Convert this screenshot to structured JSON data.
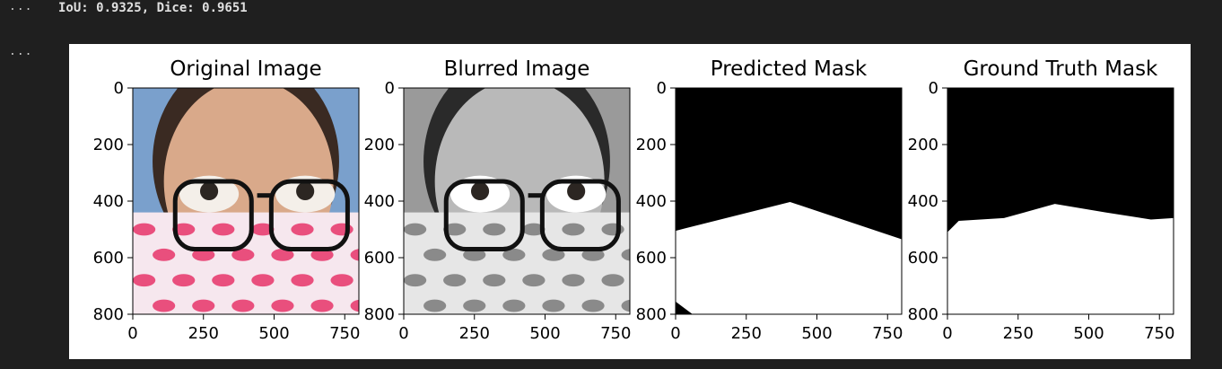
{
  "gutter": {
    "cell1": "...",
    "cell2": "..."
  },
  "output": {
    "metrics": "IoU: 0.9325, Dice: 0.9651"
  },
  "figure": {
    "panels": [
      {
        "id": "original",
        "title": "Original Image",
        "content": "color-photo-icon"
      },
      {
        "id": "blurred",
        "title": "Blurred Image",
        "content": "grayscale-photo-icon"
      },
      {
        "id": "predicted",
        "title": "Predicted Mask",
        "content": "binary-mask"
      },
      {
        "id": "ground-truth",
        "title": "Ground Truth Mask",
        "content": "binary-mask"
      }
    ],
    "x_ticks": [
      "0",
      "250",
      "500",
      "750"
    ],
    "y_ticks": [
      "0",
      "200",
      "400",
      "600",
      "800"
    ],
    "colors": {
      "mask_bg": "#000000",
      "mask_fg": "#ffffff",
      "mask_lips": "#e94f7d"
    }
  },
  "chart_data": [
    {
      "type": "heatmap",
      "title": "Original Image",
      "xlim": [
        0,
        800
      ],
      "ylim": [
        800,
        0
      ],
      "x_ticks": [
        0,
        250,
        500,
        750
      ],
      "y_ticks": [
        0,
        200,
        400,
        600,
        800
      ]
    },
    {
      "type": "heatmap",
      "title": "Blurred Image",
      "xlim": [
        0,
        800
      ],
      "ylim": [
        800,
        0
      ],
      "x_ticks": [
        0,
        250,
        500,
        750
      ],
      "y_ticks": [
        0,
        200,
        400,
        600,
        800
      ]
    },
    {
      "type": "heatmap",
      "title": "Predicted Mask",
      "xlim": [
        0,
        800
      ],
      "ylim": [
        800,
        0
      ],
      "x_ticks": [
        0,
        250,
        500,
        750
      ],
      "y_ticks": [
        0,
        200,
        400,
        600,
        800
      ],
      "boundary": [
        [
          0,
          505
        ],
        [
          405,
          403
        ],
        [
          800,
          535
        ]
      ]
    },
    {
      "type": "heatmap",
      "title": "Ground Truth Mask",
      "xlim": [
        0,
        800
      ],
      "ylim": [
        800,
        0
      ],
      "x_ticks": [
        0,
        250,
        500,
        750
      ],
      "y_ticks": [
        0,
        200,
        400,
        600,
        800
      ],
      "boundary": [
        [
          0,
          510
        ],
        [
          40,
          470
        ],
        [
          200,
          460
        ],
        [
          380,
          410
        ],
        [
          560,
          440
        ],
        [
          720,
          465
        ],
        [
          800,
          460
        ]
      ]
    }
  ]
}
